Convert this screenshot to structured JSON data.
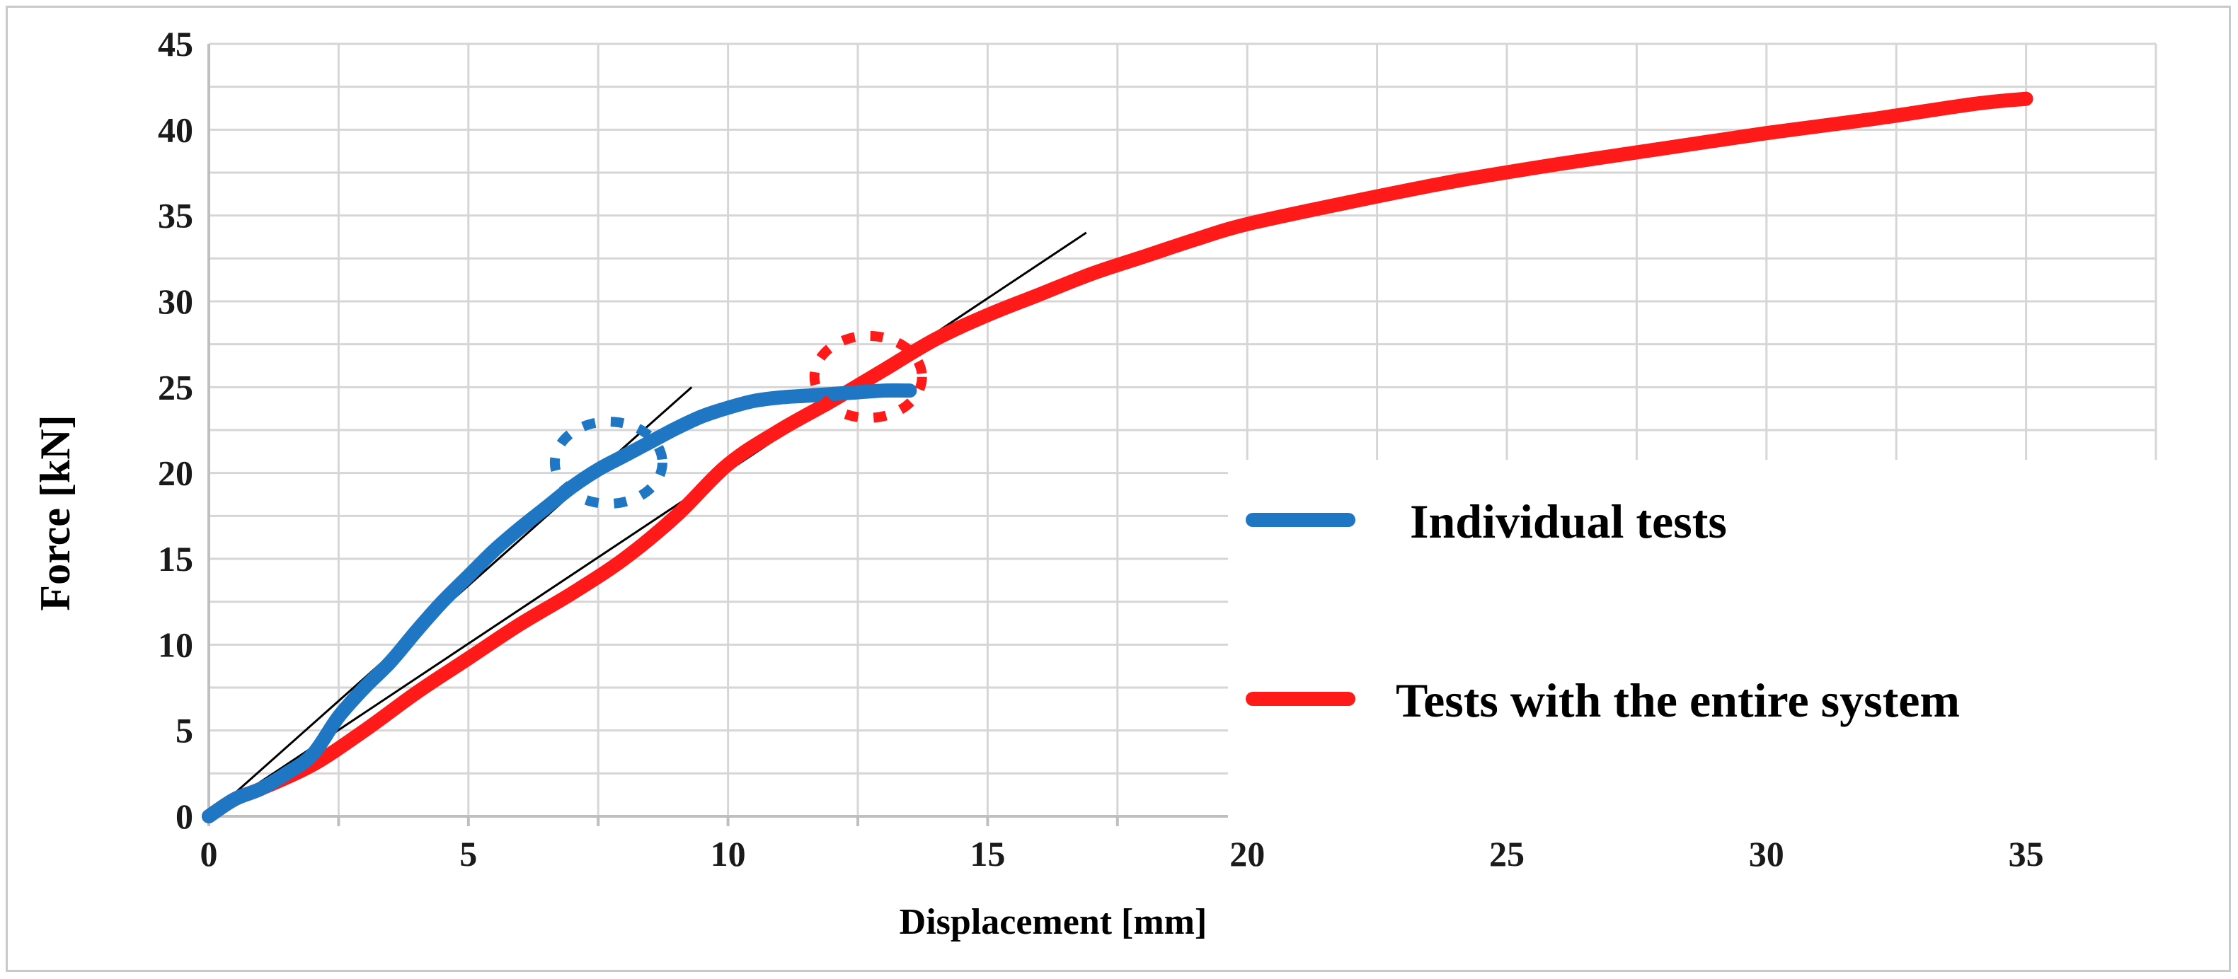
{
  "chart_data": {
    "type": "line",
    "title": "",
    "xlabel": "Displacement  [mm]",
    "ylabel": "Force [kN]",
    "xlim": [
      0,
      37.5
    ],
    "ylim": [
      0,
      45
    ],
    "grid": true,
    "x_ticks": [
      "0",
      "5",
      "10",
      "15",
      "20",
      "25",
      "30",
      "35"
    ],
    "y_ticks": [
      "0",
      "5",
      "10",
      "15",
      "20",
      "25",
      "30",
      "35",
      "40",
      "45"
    ],
    "legend_position": "middle-right",
    "series": [
      {
        "name": "Individual tests",
        "color": "#1f77c4",
        "x": [
          0,
          0.5,
          1.0,
          1.5,
          2.0,
          2.5,
          3.0,
          3.5,
          4.0,
          4.5,
          5.0,
          5.5,
          6.0,
          6.5,
          7.0,
          7.5,
          8.0,
          8.5,
          9.0,
          9.5,
          10.0,
          10.5,
          11.0,
          11.5,
          12.0,
          12.5,
          13.0,
          13.5
        ],
        "y": [
          0,
          1.0,
          1.6,
          2.5,
          3.6,
          5.8,
          7.5,
          9.0,
          10.8,
          12.5,
          14.0,
          15.5,
          16.8,
          18.0,
          19.2,
          20.2,
          21.0,
          21.8,
          22.6,
          23.3,
          23.8,
          24.2,
          24.4,
          24.5,
          24.6,
          24.7,
          24.8,
          24.8
        ]
      },
      {
        "name": "Tests with the entire system",
        "color": "#ff1a1a",
        "x": [
          0,
          0.5,
          1.0,
          2.0,
          3.0,
          4.0,
          5.0,
          6.0,
          7.0,
          8.0,
          9.0,
          10.0,
          11.0,
          12.0,
          13.0,
          14.0,
          15.0,
          16.0,
          17.0,
          18.0,
          19.0,
          20.0,
          22.0,
          24.0,
          26.0,
          28.0,
          30.0,
          32.0,
          34.0,
          35.0
        ],
        "y": [
          0,
          1.0,
          1.6,
          3.0,
          5.0,
          7.2,
          9.2,
          11.2,
          13.0,
          15.0,
          17.5,
          20.5,
          22.5,
          24.2,
          26.0,
          27.8,
          29.2,
          30.4,
          31.6,
          32.6,
          33.6,
          34.5,
          35.8,
          37.0,
          38.0,
          38.9,
          39.8,
          40.6,
          41.5,
          41.8
        ]
      }
    ],
    "tangent_lines": [
      {
        "name": "tangent-individual",
        "color": "#000000",
        "x": [
          0,
          9.3
        ],
        "y": [
          0,
          25
        ]
      },
      {
        "name": "tangent-system",
        "color": "#000000",
        "x": [
          0,
          16.9
        ],
        "y": [
          0,
          34
        ]
      }
    ],
    "annotations": [
      {
        "name": "blue-dotted-circle",
        "color": "#1f77c4",
        "center": [
          7.7,
          20.6
        ]
      },
      {
        "name": "red-dotted-circle",
        "color": "#ff1a1a",
        "center": [
          12.7,
          25.6
        ]
      }
    ]
  }
}
